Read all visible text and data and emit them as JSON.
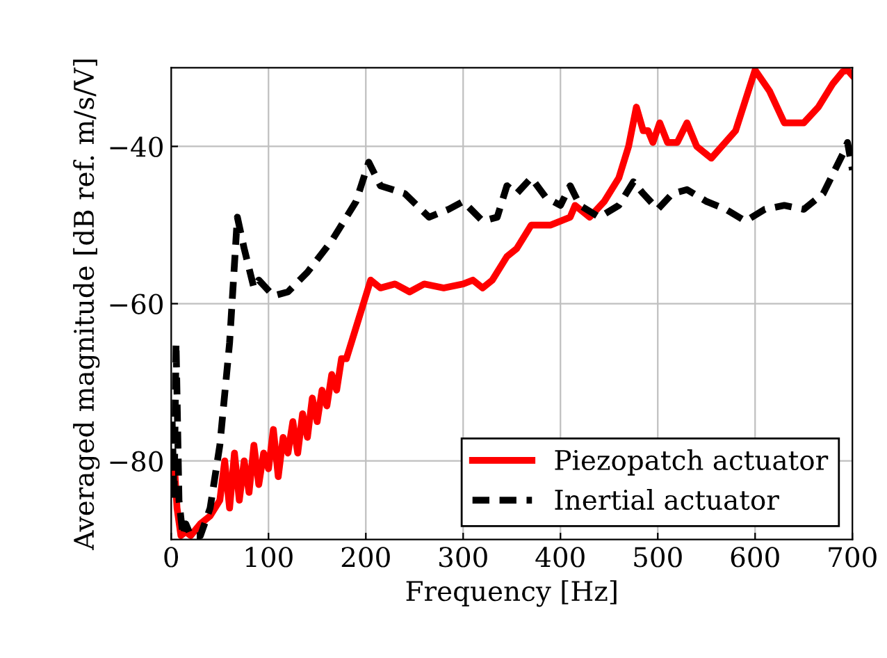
{
  "chart_data": {
    "type": "line",
    "xlabel": "Frequency [Hz]",
    "ylabel": "Averaged magnitude [dB ref. m/s/V]",
    "xlim": [
      0,
      700
    ],
    "ylim": [
      -90,
      -30
    ],
    "xticks": [
      0,
      100,
      200,
      300,
      400,
      500,
      600,
      700
    ],
    "yticks": [
      {
        "value": -40,
        "label": "−40"
      },
      {
        "value": -60,
        "label": "−60"
      },
      {
        "value": -80,
        "label": "−80"
      }
    ],
    "grid": true,
    "legend": "bottom right",
    "series": [
      {
        "name": "Piezopatch actuator",
        "color": "#ff0000",
        "line_style": "solid",
        "x": [
          3,
          6,
          10,
          15,
          20,
          30,
          40,
          50,
          55,
          60,
          65,
          70,
          75,
          80,
          85,
          90,
          95,
          100,
          105,
          110,
          115,
          120,
          125,
          130,
          135,
          140,
          145,
          150,
          155,
          160,
          165,
          170,
          175,
          180,
          190,
          195,
          205,
          215,
          230,
          245,
          260,
          280,
          300,
          310,
          320,
          330,
          345,
          355,
          370,
          390,
          410,
          415,
          430,
          445,
          460,
          470,
          478,
          485,
          490,
          495,
          502,
          510,
          520,
          530,
          540,
          555,
          580,
          600,
          615,
          630,
          650,
          665,
          680,
          690,
          695,
          700
        ],
        "values": [
          -80,
          -86,
          -89.5,
          -89,
          -89.5,
          -88,
          -87,
          -85,
          -80,
          -86,
          -79,
          -85,
          -80,
          -84,
          -78,
          -83,
          -79,
          -81,
          -76,
          -82,
          -77,
          -79,
          -75,
          -79,
          -74,
          -77,
          -72,
          -75,
          -71,
          -73,
          -69,
          -71,
          -67,
          -67,
          -63,
          -61,
          -57,
          -58,
          -57.5,
          -58.5,
          -57.5,
          -58,
          -57.5,
          -57,
          -58,
          -57,
          -54,
          -53,
          -50,
          -50,
          -49,
          -47.5,
          -49,
          -47,
          -44,
          -40,
          -35,
          -38,
          -38,
          -39.5,
          -37,
          -39.5,
          -39.5,
          -37,
          -40,
          -41.5,
          -38,
          -30.3,
          -33,
          -37,
          -37,
          -35,
          -32,
          -30.5,
          -30.3,
          -31
        ]
      },
      {
        "name": "Inertial actuator",
        "color": "#000000",
        "line_style": "dashed",
        "x": [
          1,
          3,
          5,
          8,
          12,
          15,
          20,
          30,
          40,
          50,
          60,
          68,
          75,
          85,
          90,
          105,
          120,
          140,
          165,
          190,
          203,
          215,
          240,
          265,
          285,
          300,
          320,
          335,
          345,
          355,
          370,
          385,
          400,
          410,
          420,
          440,
          460,
          475,
          485,
          500,
          515,
          530,
          550,
          570,
          590,
          610,
          630,
          650,
          670,
          690,
          695,
          700
        ],
        "values": [
          -75,
          -85,
          -65,
          -85,
          -89.5,
          -88,
          -89.5,
          -89.5,
          -86,
          -78,
          -65,
          -49,
          -53,
          -58,
          -57,
          -59,
          -58.5,
          -56,
          -52,
          -47,
          -42,
          -45,
          -46,
          -49,
          -48,
          -47,
          -49.5,
          -49,
          -45,
          -46,
          -44,
          -46.5,
          -47.5,
          -45,
          -47.5,
          -49,
          -47.5,
          -44.5,
          -46,
          -48,
          -46,
          -45.5,
          -47,
          -48,
          -49.5,
          -48,
          -47.5,
          -48,
          -46,
          -41,
          -39.5,
          -43
        ]
      }
    ]
  }
}
